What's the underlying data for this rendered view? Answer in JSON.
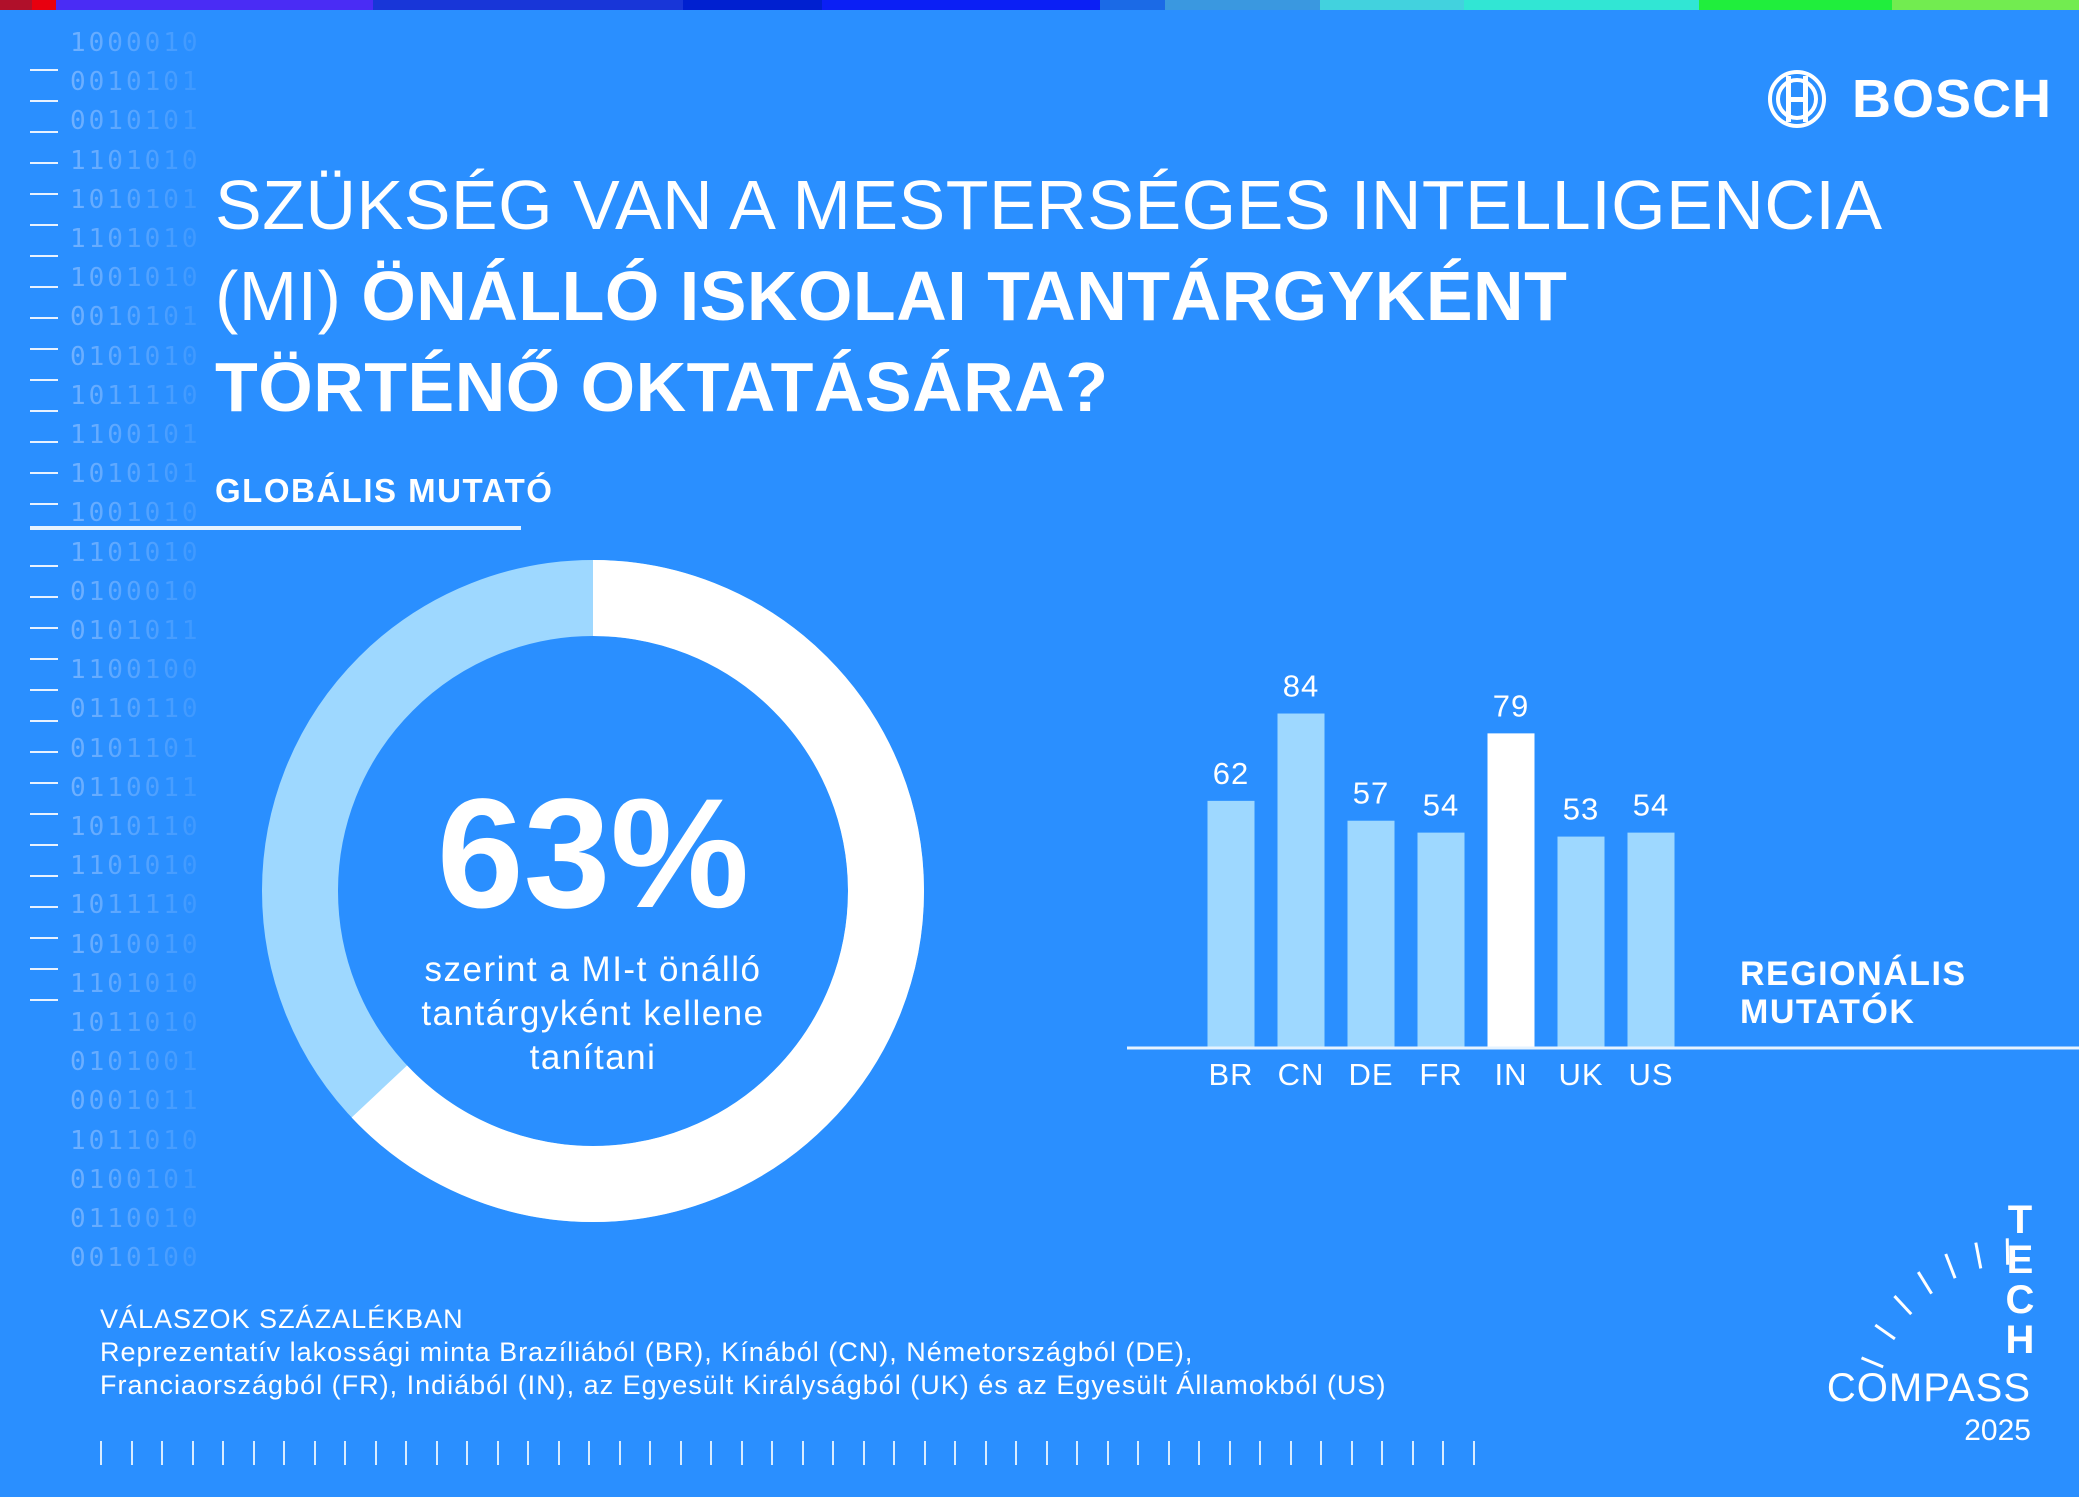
{
  "colors": {
    "background": "#2a8fff",
    "bar": "#9ed8ff",
    "bar_highlight": "#ffffff",
    "donut_main": "#ffffff",
    "donut_rest": "#9ed8ff"
  },
  "top_strip": [
    "#b0102a",
    "#e8000f",
    "#4a2cf5",
    "#1836d8",
    "#0020d0",
    "#0b1ff5",
    "#1b6ae6",
    "#3a98e0",
    "#42d2de",
    "#31e6d4",
    "#20ee3c",
    "#72ec50"
  ],
  "binary_rows": [
    "1000010",
    "0010101",
    "0010101",
    "1101010",
    "1010101",
    "1101010",
    "1001010",
    "0010101",
    "0101010",
    "1011110",
    "1100101",
    "1010101",
    "1001010",
    "1101010",
    "0100010",
    "0101011",
    "1100100",
    "0110110",
    "0101101",
    "0110011",
    "1010110",
    "1101010",
    "1011110",
    "1010010",
    "1101010",
    "1011010",
    "0101001",
    "0001011",
    "1011010",
    "0100101",
    "0110010",
    "0010100"
  ],
  "brand": {
    "name": "BOSCH",
    "icon": "bosch-armature-icon"
  },
  "title": {
    "line1": "SZÜKSÉG VAN A MESTERSÉGES INTELLIGENCIA",
    "line2_light": "(MI) ",
    "line2_bold": "ÖNÁLLÓ ISKOLAI TANTÁRGYKÉNT",
    "line3_bold": "TÖRTÉNŐ OKTATÁSÁRA?"
  },
  "global": {
    "label": "GLOBÁLIS MUTATÓ",
    "value_text": "63%",
    "value": 63,
    "caption_lines": [
      "szerint a MI-t önálló",
      "tantárgyként kellene",
      "tanítani"
    ]
  },
  "chart_data": {
    "type": "bar",
    "title": "REGIONÁLIS MUTATÓK",
    "categories": [
      "BR",
      "CN",
      "DE",
      "FR",
      "IN",
      "UK",
      "US"
    ],
    "values": [
      62,
      84,
      57,
      54,
      79,
      53,
      54
    ],
    "highlight": "IN",
    "unit": "%",
    "ylim": [
      0,
      100
    ],
    "xlabel": "",
    "ylabel": "",
    "grid": false
  },
  "region": {
    "line1": "REGIONÁLIS",
    "line2": "MUTATÓK"
  },
  "footer": {
    "heading": "VÁLASZOK SZÁZALÉKBAN",
    "line1": "Reprezentatív lakossági minta Brazíliából (BR), Kínából (CN), Németországból (DE),",
    "line2": "Franciaországból (FR), Indiából (IN), az Egyesült Királyságból (UK) és az Egyesült Államokból (US)"
  },
  "tech_compass": {
    "letters": [
      "T",
      "E",
      "C",
      "H"
    ],
    "word": "COMPASS",
    "year": "2025"
  }
}
